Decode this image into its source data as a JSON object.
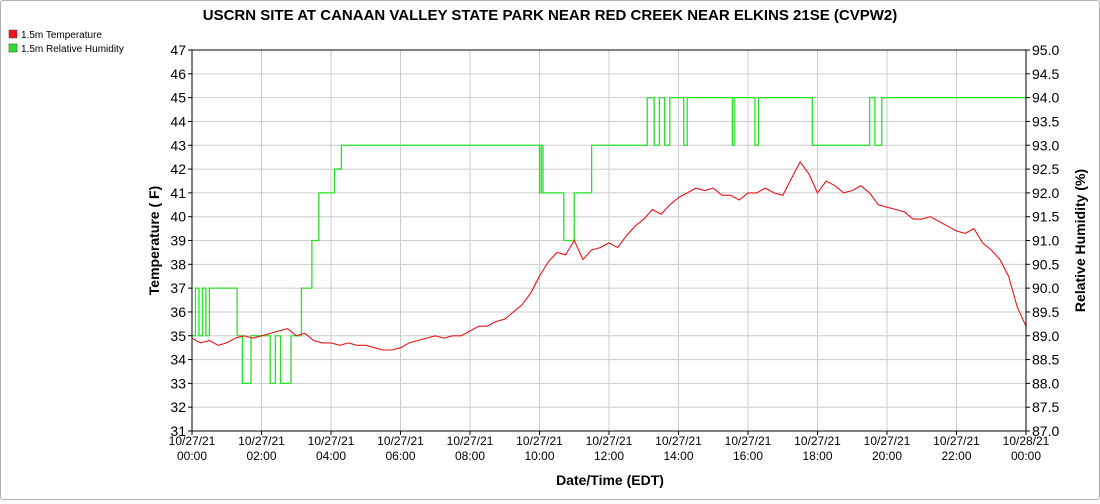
{
  "chart_data": {
    "type": "line",
    "title": "USCRN SITE AT CANAAN VALLEY STATE PARK NEAR RED CREEK NEAR ELKINS 21SE (CVPW2)",
    "xlabel": "Date/Time (EDT)",
    "ylabel_left": "Temperature ( F)",
    "ylabel_right": "Relative Humidity (%)",
    "grid": true,
    "legend_position": "top-left",
    "x_range_hours": [
      0,
      24
    ],
    "x_ticks": [
      {
        "hour": 0,
        "date": "10/27/21",
        "time": "00:00"
      },
      {
        "hour": 2,
        "date": "10/27/21",
        "time": "02:00"
      },
      {
        "hour": 4,
        "date": "10/27/21",
        "time": "04:00"
      },
      {
        "hour": 6,
        "date": "10/27/21",
        "time": "06:00"
      },
      {
        "hour": 8,
        "date": "10/27/21",
        "time": "08:00"
      },
      {
        "hour": 10,
        "date": "10/27/21",
        "time": "10:00"
      },
      {
        "hour": 12,
        "date": "10/27/21",
        "time": "12:00"
      },
      {
        "hour": 14,
        "date": "10/27/21",
        "time": "14:00"
      },
      {
        "hour": 16,
        "date": "10/27/21",
        "time": "16:00"
      },
      {
        "hour": 18,
        "date": "10/27/21",
        "time": "18:00"
      },
      {
        "hour": 20,
        "date": "10/27/21",
        "time": "20:00"
      },
      {
        "hour": 22,
        "date": "10/27/21",
        "time": "22:00"
      },
      {
        "hour": 24,
        "date": "10/28/21",
        "time": "00:00"
      }
    ],
    "y_left": {
      "min": 31,
      "max": 47,
      "ticks": [
        "31",
        "32",
        "33",
        "34",
        "35",
        "36",
        "37",
        "38",
        "39",
        "40",
        "41",
        "42",
        "43",
        "44",
        "45",
        "46",
        "47"
      ]
    },
    "y_right": {
      "min": 87,
      "max": 95,
      "ticks": [
        "87.0",
        "87.5",
        "88.0",
        "88.5",
        "89.0",
        "89.5",
        "90.0",
        "90.5",
        "91.0",
        "91.5",
        "92.0",
        "92.5",
        "93.0",
        "93.5",
        "94.0",
        "94.5",
        "95.0"
      ]
    },
    "series": [
      {
        "name": "1.5m Temperature",
        "color": "#e8131b",
        "axis": "left",
        "x": [
          0,
          0.25,
          0.5,
          0.75,
          1.0,
          1.25,
          1.5,
          1.75,
          2.0,
          2.25,
          2.5,
          2.75,
          3.0,
          3.25,
          3.5,
          3.75,
          4.0,
          4.25,
          4.5,
          4.75,
          5.0,
          5.25,
          5.5,
          5.75,
          6.0,
          6.25,
          6.5,
          6.75,
          7.0,
          7.25,
          7.5,
          7.75,
          8.0,
          8.25,
          8.5,
          8.75,
          9.0,
          9.25,
          9.5,
          9.75,
          10.0,
          10.25,
          10.5,
          10.75,
          11.0,
          11.25,
          11.5,
          11.75,
          12.0,
          12.25,
          12.5,
          12.75,
          13.0,
          13.25,
          13.5,
          13.75,
          14.0,
          14.25,
          14.5,
          14.75,
          15.0,
          15.25,
          15.5,
          15.75,
          16.0,
          16.25,
          16.5,
          16.75,
          17.0,
          17.25,
          17.5,
          17.75,
          18.0,
          18.25,
          18.5,
          18.75,
          19.0,
          19.25,
          19.5,
          19.75,
          20.0,
          20.25,
          20.5,
          20.75,
          21.0,
          21.25,
          21.5,
          21.75,
          22.0,
          22.25,
          22.5,
          22.75,
          23.0,
          23.25,
          23.5,
          23.75,
          24.0
        ],
        "values": [
          34.9,
          34.7,
          34.8,
          34.6,
          34.7,
          34.9,
          35.0,
          34.9,
          35.0,
          35.1,
          35.2,
          35.3,
          35.0,
          35.1,
          34.8,
          34.7,
          34.7,
          34.6,
          34.7,
          34.6,
          34.6,
          34.5,
          34.4,
          34.4,
          34.5,
          34.7,
          34.8,
          34.9,
          35.0,
          34.9,
          35.0,
          35.0,
          35.2,
          35.4,
          35.4,
          35.6,
          35.7,
          36.0,
          36.3,
          36.8,
          37.5,
          38.1,
          38.5,
          38.4,
          39.0,
          38.2,
          38.6,
          38.7,
          38.9,
          38.7,
          39.2,
          39.6,
          39.9,
          40.3,
          40.1,
          40.5,
          40.8,
          41.0,
          41.2,
          41.1,
          41.2,
          40.9,
          40.9,
          40.7,
          41.0,
          41.0,
          41.2,
          41.0,
          40.9,
          41.6,
          42.3,
          41.8,
          41.0,
          41.5,
          41.3,
          41.0,
          41.1,
          41.3,
          41.0,
          40.5,
          40.4,
          40.3,
          40.2,
          39.9,
          39.9,
          40.0,
          39.8,
          39.6,
          39.4,
          39.3,
          39.5,
          38.9,
          38.6,
          38.2,
          37.5,
          36.2,
          35.4
        ],
        "ylim": [
          31,
          47
        ]
      },
      {
        "name": "1.5m Relative Humidity",
        "color": "#27e227",
        "axis": "right",
        "steps": [
          [
            0,
            89
          ],
          [
            0.1,
            90
          ],
          [
            0.2,
            89
          ],
          [
            0.3,
            90
          ],
          [
            0.4,
            89
          ],
          [
            0.5,
            90
          ],
          [
            1.25,
            90
          ],
          [
            1.3,
            89
          ],
          [
            1.45,
            88
          ],
          [
            1.65,
            88
          ],
          [
            1.7,
            89
          ],
          [
            2.2,
            89
          ],
          [
            2.25,
            88
          ],
          [
            2.35,
            88
          ],
          [
            2.4,
            89
          ],
          [
            2.5,
            89
          ],
          [
            2.55,
            88
          ],
          [
            2.8,
            88
          ],
          [
            2.85,
            89
          ],
          [
            3.1,
            89
          ],
          [
            3.15,
            90
          ],
          [
            3.4,
            90
          ],
          [
            3.45,
            91
          ],
          [
            3.6,
            91
          ],
          [
            3.65,
            92
          ],
          [
            4.05,
            92
          ],
          [
            4.1,
            92.5
          ],
          [
            4.25,
            92.5
          ],
          [
            4.3,
            93
          ],
          [
            9.95,
            93
          ],
          [
            10.0,
            92
          ],
          [
            10.05,
            93
          ],
          [
            10.1,
            92
          ],
          [
            10.65,
            92
          ],
          [
            10.7,
            91
          ],
          [
            10.95,
            91
          ],
          [
            11.0,
            92
          ],
          [
            11.45,
            92
          ],
          [
            11.5,
            93
          ],
          [
            13.05,
            93
          ],
          [
            13.1,
            94
          ],
          [
            13.25,
            94
          ],
          [
            13.3,
            93
          ],
          [
            13.45,
            94
          ],
          [
            13.55,
            94
          ],
          [
            13.6,
            93
          ],
          [
            13.75,
            94
          ],
          [
            14.1,
            94
          ],
          [
            14.15,
            93
          ],
          [
            14.25,
            94
          ],
          [
            15.5,
            94
          ],
          [
            15.55,
            93
          ],
          [
            15.6,
            94
          ],
          [
            16.15,
            94
          ],
          [
            16.2,
            93
          ],
          [
            16.3,
            94
          ],
          [
            17.8,
            94
          ],
          [
            17.85,
            93
          ],
          [
            19.45,
            93
          ],
          [
            19.5,
            94
          ],
          [
            19.6,
            94
          ],
          [
            19.65,
            93
          ],
          [
            19.8,
            93
          ],
          [
            19.85,
            94
          ],
          [
            24,
            94
          ]
        ],
        "ylim": [
          87,
          95
        ]
      }
    ]
  }
}
